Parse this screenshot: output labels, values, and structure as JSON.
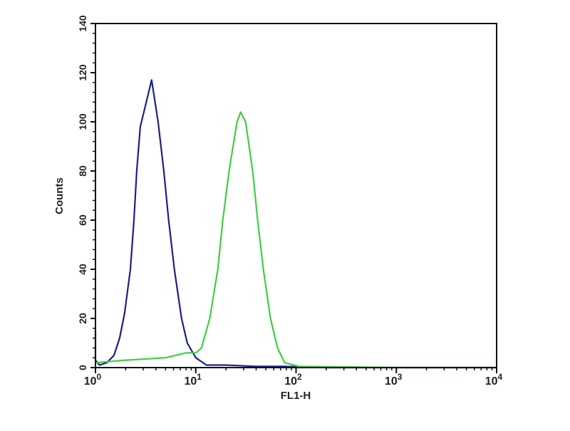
{
  "chart_data": {
    "type": "line",
    "title": "",
    "xlabel": "FL1-H",
    "ylabel": "Counts",
    "x_scale": "log",
    "xlim": [
      1,
      10000
    ],
    "ylim": [
      0,
      140
    ],
    "x_ticks": [
      {
        "base": "10",
        "exp": "0",
        "value": 1
      },
      {
        "base": "10",
        "exp": "1",
        "value": 10
      },
      {
        "base": "10",
        "exp": "2",
        "value": 100
      },
      {
        "base": "10",
        "exp": "3",
        "value": 1000
      },
      {
        "base": "10",
        "exp": "4",
        "value": 10000
      }
    ],
    "y_ticks": [
      "0",
      "20",
      "40",
      "60",
      "80",
      "100",
      "120",
      "140"
    ],
    "grid": false,
    "series": [
      {
        "color": "#1c1f8a",
        "x": [
          1.0,
          1.0,
          1.1,
          1.3,
          1.53,
          1.74,
          1.95,
          2.23,
          2.42,
          2.58,
          2.8,
          3.08,
          3.63,
          4.21,
          4.8,
          5.37,
          6.12,
          7.21,
          8.22,
          10,
          12.8,
          20,
          40,
          77,
          200,
          1000,
          10000
        ],
        "y": [
          15,
          3,
          1,
          2,
          5,
          12,
          22,
          40,
          60,
          80,
          98,
          105,
          117,
          100,
          80,
          60,
          40,
          20,
          10,
          4,
          1,
          1,
          0.5,
          0.5,
          0,
          0,
          0
        ]
      },
      {
        "color": "#3fcf3f",
        "x": [
          1.0,
          2,
          5,
          8,
          10,
          11.4,
          13.8,
          16.6,
          18.6,
          21.5,
          25.8,
          28,
          31.4,
          36.9,
          41.4,
          47.2,
          55.6,
          65.4,
          77,
          107,
          1000,
          10000
        ],
        "y": [
          2,
          3,
          4,
          6,
          6,
          8,
          20,
          40,
          60,
          80,
          100,
          104,
          100,
          80,
          60,
          40,
          20,
          8,
          2,
          0.5,
          0,
          0
        ]
      }
    ]
  }
}
